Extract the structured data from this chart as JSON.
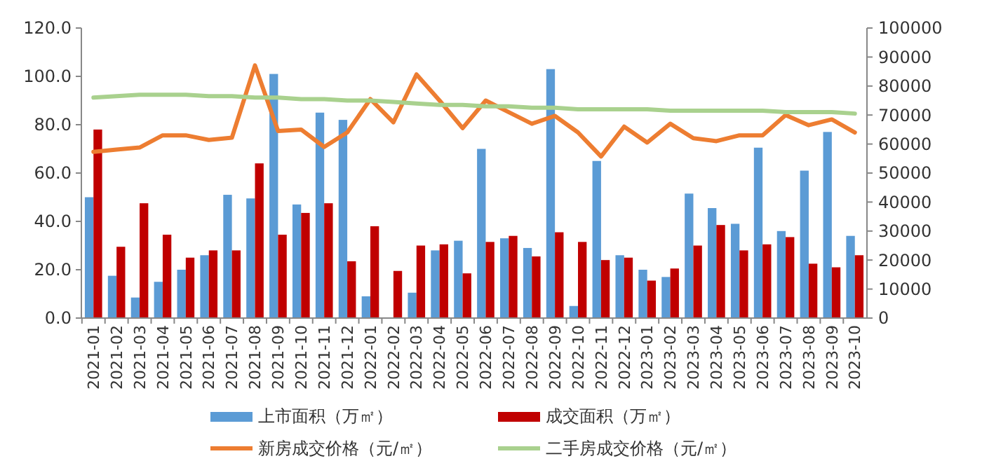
{
  "chart_data": {
    "type": "bar",
    "categories": [
      "2021-01",
      "2021-02",
      "2021-03",
      "2021-04",
      "2021-05",
      "2021-06",
      "2021-07",
      "2021-08",
      "2021-09",
      "2021-10",
      "2021-11",
      "2021-12",
      "2022-01",
      "2022-02",
      "2022-03",
      "2022-04",
      "2022-05",
      "2022-06",
      "2022-07",
      "2022-08",
      "2022-09",
      "2022-10",
      "2022-11",
      "2022-12",
      "2023-01",
      "2023-02",
      "2023-03",
      "2023-04",
      "2023-05",
      "2023-06",
      "2023-07",
      "2023-08",
      "2023-09",
      "2023-10"
    ],
    "series": [
      {
        "name": "上市面积（万㎡）",
        "color": "#5b9bd5",
        "values": [
          50,
          17.5,
          8.5,
          15,
          20,
          26,
          51,
          49.5,
          101,
          47,
          85,
          82,
          9,
          0,
          10.5,
          28,
          32,
          70,
          33,
          29,
          103,
          5,
          65,
          26,
          20,
          17,
          51.5,
          45.5,
          39,
          70.5,
          36,
          61,
          77,
          34
        ]
      },
      {
        "name": "成交面积（万㎡）",
        "color": "#c00000",
        "values": [
          78,
          29.5,
          47.5,
          34.5,
          25,
          28,
          28,
          64,
          34.5,
          43.5,
          47.5,
          23.5,
          38,
          19.5,
          30,
          30.5,
          18.5,
          31.5,
          34,
          25.5,
          35.5,
          31.5,
          24,
          25,
          15.5,
          20.5,
          30,
          38.5,
          28,
          30.5,
          33.5,
          22.5,
          21,
          26
        ]
      },
      {
        "name": "新房成交价格（元/㎡）",
        "type": "line",
        "axis": "y2",
        "color": "#ed7d31",
        "values": [
          57300,
          58100,
          58800,
          63000,
          63000,
          61400,
          62200,
          87100,
          64500,
          65000,
          59000,
          64000,
          75500,
          67500,
          84000,
          75000,
          65500,
          75000,
          71000,
          67000,
          69700,
          64000,
          55700,
          66000,
          60500,
          67000,
          62000,
          61000,
          63000,
          63000,
          70000,
          66500,
          68500,
          64000
        ]
      },
      {
        "name": "二手房成交价格（元/㎡）",
        "type": "line",
        "axis": "y2",
        "color": "#a9d18e",
        "values": [
          76000,
          76500,
          77000,
          77000,
          77000,
          76500,
          76500,
          76000,
          76000,
          75500,
          75500,
          75000,
          75000,
          74500,
          74000,
          73500,
          73500,
          73000,
          73000,
          72500,
          72500,
          72000,
          72000,
          72000,
          72000,
          71500,
          71500,
          71500,
          71500,
          71500,
          71000,
          71000,
          71000,
          70500
        ]
      }
    ],
    "ylim": [
      0,
      120
    ],
    "yticks": [
      {
        "value": 0,
        "label": "0.0"
      },
      {
        "value": 20,
        "label": "20.0"
      },
      {
        "value": 40,
        "label": "40.0"
      },
      {
        "value": 60,
        "label": "60.0"
      },
      {
        "value": 80,
        "label": "80.0"
      },
      {
        "value": 100,
        "label": "100.0"
      },
      {
        "value": 120,
        "label": "120.0"
      }
    ],
    "y2lim": [
      0,
      100000
    ],
    "y2ticks": [
      0,
      10000,
      20000,
      30000,
      40000,
      50000,
      60000,
      70000,
      80000,
      90000,
      100000
    ],
    "grid": false,
    "legend": "bottom",
    "marker": "none",
    "line_style": "solid"
  }
}
